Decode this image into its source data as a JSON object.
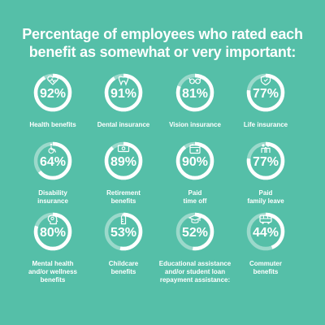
{
  "title_lines": [
    "Percentage of employees who rated each",
    "benefit as somewhat or very important:"
  ],
  "colors": {
    "background": "#55bfa8",
    "ring_fill": "#ffffff",
    "ring_track": "#9bd9cb",
    "text": "#ffffff"
  },
  "chart_data": {
    "type": "bar",
    "title": "Percentage of employees who rated each benefit as somewhat or very important:",
    "categories": [
      "Health benefits",
      "Dental insurance",
      "Vision insurance",
      "Life insurance",
      "Disability insurance",
      "Retirement benefits",
      "Paid time off",
      "Paid family leave",
      "Mental health and/or wellness benefits",
      "Childcare benefits",
      "Educational assistance and/or student loan repayment assistance:",
      "Commuter benefits"
    ],
    "values": [
      92,
      91,
      81,
      77,
      64,
      89,
      90,
      77,
      80,
      53,
      52,
      44
    ],
    "unit": "%",
    "ylim": [
      0,
      100
    ],
    "items": [
      {
        "value": 92,
        "value_label": "92%",
        "label_lines": [
          "Health benefits"
        ],
        "icon": "heart-pulse-icon"
      },
      {
        "value": 91,
        "value_label": "91%",
        "label_lines": [
          "Dental insurance"
        ],
        "icon": "tooth-icon"
      },
      {
        "value": 81,
        "value_label": "81%",
        "label_lines": [
          "Vision insurance"
        ],
        "icon": "glasses-icon"
      },
      {
        "value": 77,
        "value_label": "77%",
        "label_lines": [
          "Life insurance"
        ],
        "icon": "shield-icon"
      },
      {
        "value": 64,
        "value_label": "64%",
        "label_lines": [
          "Disability",
          "insurance"
        ],
        "icon": "wheelchair-icon"
      },
      {
        "value": 89,
        "value_label": "89%",
        "label_lines": [
          "Retirement",
          "benefits"
        ],
        "icon": "money-icon"
      },
      {
        "value": 90,
        "value_label": "90%",
        "label_lines": [
          "Paid",
          "time off"
        ],
        "icon": "calendar-icon"
      },
      {
        "value": 77,
        "value_label": "77%",
        "label_lines": [
          "Paid",
          "family leave"
        ],
        "icon": "family-icon"
      },
      {
        "value": 80,
        "value_label": "80%",
        "label_lines": [
          "Mental health",
          "and/or wellness",
          "benefits"
        ],
        "icon": "head-icon"
      },
      {
        "value": 53,
        "value_label": "53%",
        "label_lines": [
          "Childcare",
          "benefits"
        ],
        "icon": "baby-bottle-icon"
      },
      {
        "value": 52,
        "value_label": "52%",
        "label_lines": [
          "Educational assistance",
          "and/or student loan",
          "repayment assistance:"
        ],
        "icon": "graduation-cap-icon"
      },
      {
        "value": 44,
        "value_label": "44%",
        "label_lines": [
          "Commuter",
          "benefits"
        ],
        "icon": "bus-icon"
      }
    ]
  }
}
